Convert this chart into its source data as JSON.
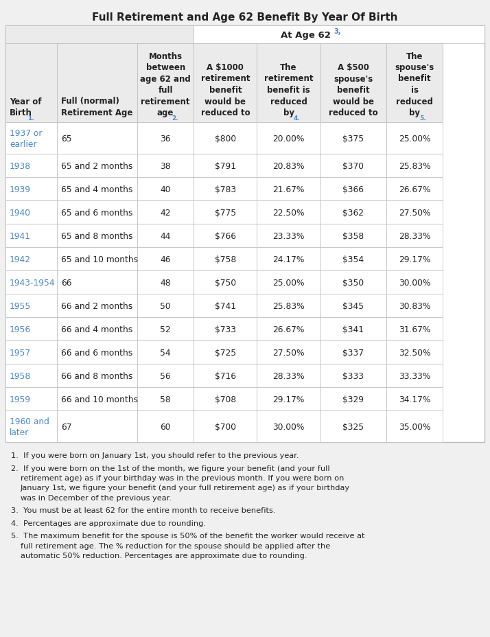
{
  "title": "Full Retirement and Age 62 Benefit By Year Of Birth",
  "bg_color": "#f0f0f0",
  "table_bg": "#ffffff",
  "header_bg": "#ebebeb",
  "link_color": "#4a86c8",
  "text_color": "#222222",
  "border_color": "#bbbbbb",
  "col_headers_main": [
    "Year of\nBirth",
    "Full (normal)\nRetirement Age",
    "Months\nbetween\nage 62 and\nfull\nretirement\nage",
    "A $1000\nretirement\nbenefit\nwould be\nreduced to",
    "The\nretirement\nbenefit is\nreduced\nby",
    "A $500\nspouse's\nbenefit\nwould be\nreduced to",
    "The\nspouse's\nbenefit\nis\nreduced\nby"
  ],
  "superscripts": [
    "1.",
    "",
    "2.",
    "",
    "4.",
    "",
    "5."
  ],
  "at_age_62_label": "At Age 62",
  "at_age_62_sup": "3,",
  "rows": [
    [
      "1937 or\nearlier",
      "65",
      "36",
      "$800",
      "20.00%",
      "$375",
      "25.00%"
    ],
    [
      "1938",
      "65 and 2 months",
      "38",
      "$791",
      "20.83%",
      "$370",
      "25.83%"
    ],
    [
      "1939",
      "65 and 4 months",
      "40",
      "$783",
      "21.67%",
      "$366",
      "26.67%"
    ],
    [
      "1940",
      "65 and 6 months",
      "42",
      "$775",
      "22.50%",
      "$362",
      "27.50%"
    ],
    [
      "1941",
      "65 and 8 months",
      "44",
      "$766",
      "23.33%",
      "$358",
      "28.33%"
    ],
    [
      "1942",
      "65 and 10 months",
      "46",
      "$758",
      "24.17%",
      "$354",
      "29.17%"
    ],
    [
      "1943-1954",
      "66",
      "48",
      "$750",
      "25.00%",
      "$350",
      "30.00%"
    ],
    [
      "1955",
      "66 and 2 months",
      "50",
      "$741",
      "25.83%",
      "$345",
      "30.83%"
    ],
    [
      "1956",
      "66 and 4 months",
      "52",
      "$733",
      "26.67%",
      "$341",
      "31.67%"
    ],
    [
      "1957",
      "66 and 6 months",
      "54",
      "$725",
      "27.50%",
      "$337",
      "32.50%"
    ],
    [
      "1958",
      "66 and 8 months",
      "56",
      "$716",
      "28.33%",
      "$333",
      "33.33%"
    ],
    [
      "1959",
      "66 and 10 months",
      "58",
      "$708",
      "29.17%",
      "$329",
      "34.17%"
    ],
    [
      "1960 and\nlater",
      "67",
      "60",
      "$700",
      "30.00%",
      "$325",
      "35.00%"
    ]
  ],
  "col_aligns": [
    "left",
    "left",
    "center",
    "center",
    "center",
    "center",
    "center"
  ],
  "footnote_items": [
    {
      "num": "1.",
      "text": "If you were born on January 1st, you should refer to the previous year."
    },
    {
      "num": "2.",
      "text": "If you were born on the 1st of the month, we figure your benefit (and your full retirement age) as if your birthday was in the previous month. If you were born on January 1st, we figure your benefit (and your full retirement age) as if your birthday was in December of the previous year."
    },
    {
      "num": "3.",
      "text": "You must be at least 62 for the entire month to receive benefits."
    },
    {
      "num": "4.",
      "text": "Percentages are approximate due to rounding."
    },
    {
      "num": "5.",
      "text": "The maximum benefit for the spouse is 50% of the benefit the worker would receive at full retirement age. The % reduction for the spouse should be applied after the automatic 50% reduction. Percentages are approximate due to rounding."
    }
  ]
}
